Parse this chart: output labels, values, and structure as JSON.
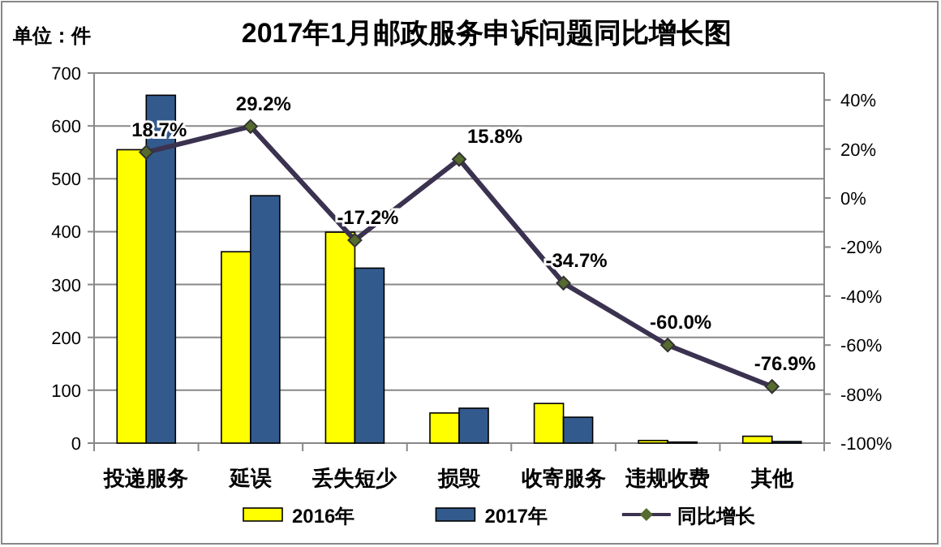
{
  "chart_data": {
    "type": "bar",
    "title": "2017年1月邮政服务申诉问题同比增长图",
    "annotations": [
      "单位：件"
    ],
    "categories": [
      "投递服务",
      "延误",
      "丢失短少",
      "损毁",
      "收寄服务",
      "违规收费",
      "其他"
    ],
    "series": [
      {
        "name": "2016年",
        "color": "#ffff00",
        "values": [
          555,
          362,
          399,
          57,
          75,
          5,
          13
        ]
      },
      {
        "name": "2017年",
        "color": "#335a8c",
        "values": [
          658,
          468,
          331,
          66,
          49,
          2,
          3
        ]
      },
      {
        "name": "同比增长",
        "type": "line",
        "axis": "y2",
        "color": "#3b3250",
        "marker": "diamond",
        "values": [
          18.7,
          29.2,
          -17.2,
          15.8,
          -34.7,
          -60.0,
          -76.9
        ],
        "value_labels": [
          "18.7%",
          "29.2%",
          "-17.2%",
          "15.8%",
          "-34.7%",
          "-60.0%",
          "-76.9%"
        ]
      }
    ],
    "ylim": [
      0,
      700
    ],
    "yticks": [
      0,
      100,
      200,
      300,
      400,
      500,
      600,
      700
    ],
    "y2lim": [
      -100,
      51
    ],
    "y2ticks": [
      {
        "value": -100,
        "label": "-100%"
      },
      {
        "value": -80,
        "label": "-80%"
      },
      {
        "value": -60,
        "label": "-60%"
      },
      {
        "value": -40,
        "label": "-40%"
      },
      {
        "value": -20,
        "label": "-20%"
      },
      {
        "value": 0,
        "label": "0%"
      },
      {
        "value": 20,
        "label": "20%"
      },
      {
        "value": 40,
        "label": "40%"
      }
    ],
    "grid": "y",
    "legend": "bottom"
  }
}
